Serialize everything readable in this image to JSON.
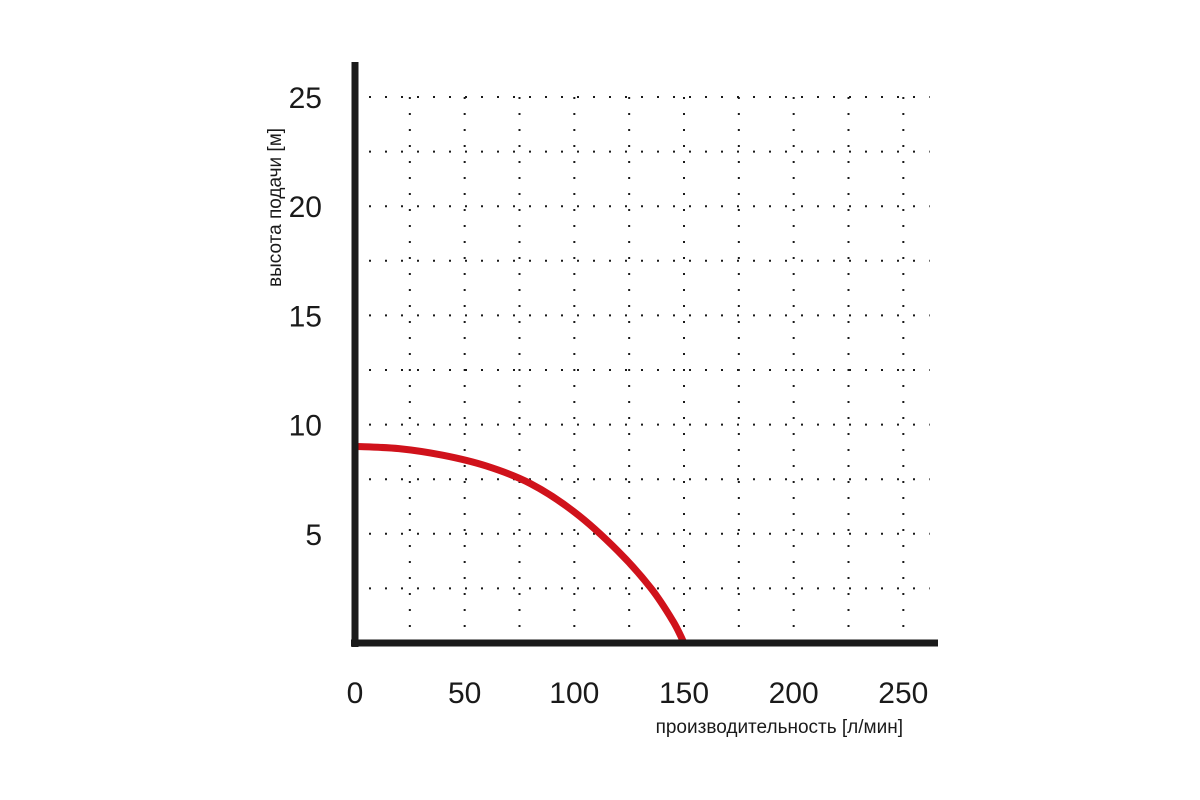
{
  "chart_data": {
    "type": "line",
    "title": "",
    "xlabel": "производительность [л/мин]",
    "ylabel": "высота подачи [м]",
    "xlim": [
      0,
      262
    ],
    "ylim": [
      0,
      26
    ],
    "x_ticks": [
      0,
      50,
      100,
      150,
      200,
      250
    ],
    "y_ticks": [
      5,
      10,
      15,
      20,
      25
    ],
    "x_tick_labels": [
      "0",
      "50",
      "100",
      "150",
      "200",
      "250"
    ],
    "y_tick_labels": [
      "5",
      "10",
      "15",
      "20",
      "25"
    ],
    "grid": "dashed, every 25 л/мин and 2.5 м",
    "colors": {
      "curve": "#d0121b",
      "axes": "#1a1a1a",
      "grid": "#1a1a1a"
    },
    "series": [
      {
        "x": [
          0,
          20,
          40,
          60,
          80,
          100,
          120,
          135,
          145,
          150
        ],
        "y": [
          9.0,
          8.9,
          8.6,
          8.1,
          7.3,
          6.0,
          4.2,
          2.5,
          1.0,
          0
        ]
      }
    ]
  }
}
